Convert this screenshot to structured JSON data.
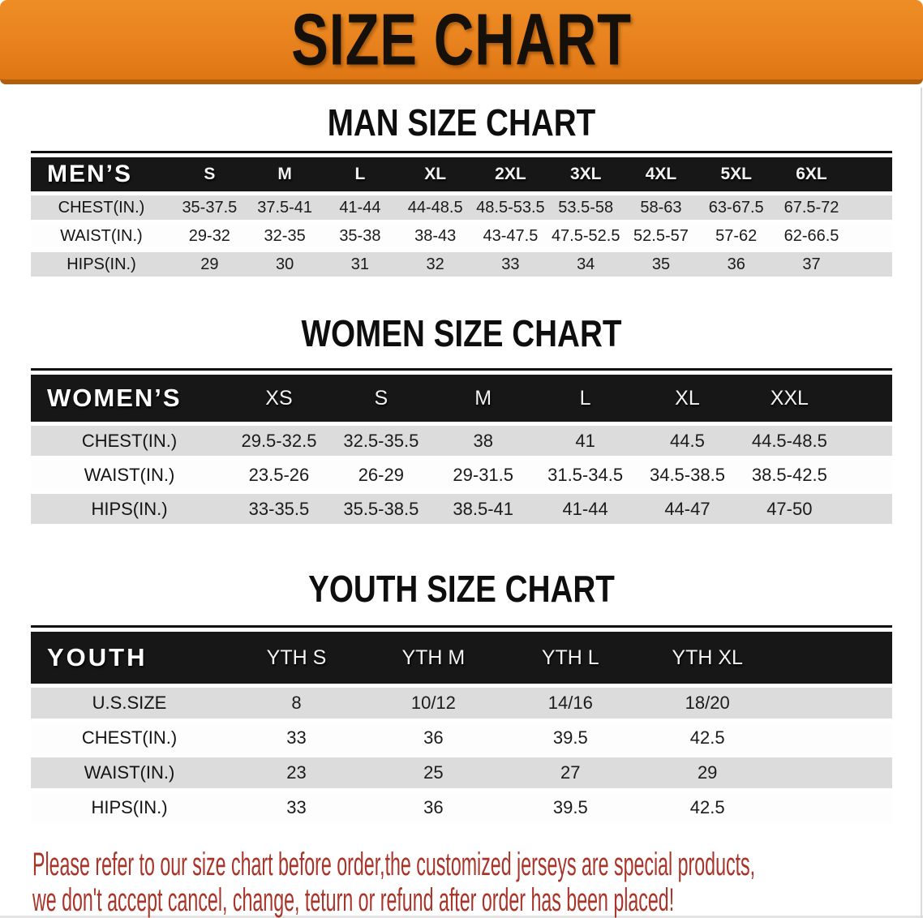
{
  "banner": {
    "title": "SIZE CHART"
  },
  "colors": {
    "banner_orange": "#e8821e",
    "banner_edge": "#b05f0f",
    "table_header_black": "#171717",
    "row_gray": "#dcdcdc",
    "disclaimer_red": "#a8342a"
  },
  "sections": [
    {
      "heading": "MAN SIZE CHART",
      "table": {
        "header": [
          "MEN’S",
          "S",
          "M",
          "L",
          "XL",
          "2XL",
          "3XL",
          "4XL",
          "5XL",
          "6XL"
        ],
        "rows": [
          {
            "label": "CHEST(IN.)",
            "values": [
              "35-37.5",
              "37.5-41",
              "41-44",
              "44-48.5",
              "48.5-53.5",
              "53.5-58",
              "58-63",
              "63-67.5",
              "67.5-72"
            ]
          },
          {
            "label": "WAIST(IN.)",
            "values": [
              "29-32",
              "32-35",
              "35-38",
              "38-43",
              "43-47.5",
              "47.5-52.5",
              "52.5-57",
              "57-62",
              "62-66.5"
            ]
          },
          {
            "label": "HIPS(IN.)",
            "values": [
              "29",
              "30",
              "31",
              "32",
              "33",
              "34",
              "35",
              "36",
              "37"
            ]
          }
        ]
      }
    },
    {
      "heading": "WOMEN SIZE CHART",
      "table": {
        "header": [
          "WOMEN’S",
          "XS",
          "S",
          "M",
          "L",
          "XL",
          "XXL"
        ],
        "rows": [
          {
            "label": "CHEST(IN.)",
            "values": [
              "29.5-32.5",
              "32.5-35.5",
              "38",
              "41",
              "44.5",
              "44.5-48.5"
            ]
          },
          {
            "label": "WAIST(IN.)",
            "values": [
              "23.5-26",
              "26-29",
              "29-31.5",
              "31.5-34.5",
              "34.5-38.5",
              "38.5-42.5"
            ]
          },
          {
            "label": "HIPS(IN.)",
            "values": [
              "33-35.5",
              "35.5-38.5",
              "38.5-41",
              "41-44",
              "44-47",
              "47-50"
            ]
          }
        ]
      }
    },
    {
      "heading": "YOUTH SIZE CHART",
      "table": {
        "header": [
          "YOUTH",
          "YTH S",
          "YTH M",
          "YTH L",
          "YTH XL"
        ],
        "rows": [
          {
            "label": "U.S.SIZE",
            "values": [
              "8",
              "10/12",
              "14/16",
              "18/20"
            ]
          },
          {
            "label": "CHEST(IN.)",
            "values": [
              "33",
              "36",
              "39.5",
              "42.5"
            ]
          },
          {
            "label": "WAIST(IN.)",
            "values": [
              "23",
              "25",
              "27",
              "29"
            ]
          },
          {
            "label": "HIPS(IN.)",
            "values": [
              "33",
              "36",
              "39.5",
              "42.5"
            ]
          }
        ]
      }
    }
  ],
  "disclaimer": {
    "lines": [
      "Please refer to our size chart before order,the customized jerseys are special products,",
      "we don't accept cancel, change, teturn or refund after order has been placed!"
    ]
  }
}
